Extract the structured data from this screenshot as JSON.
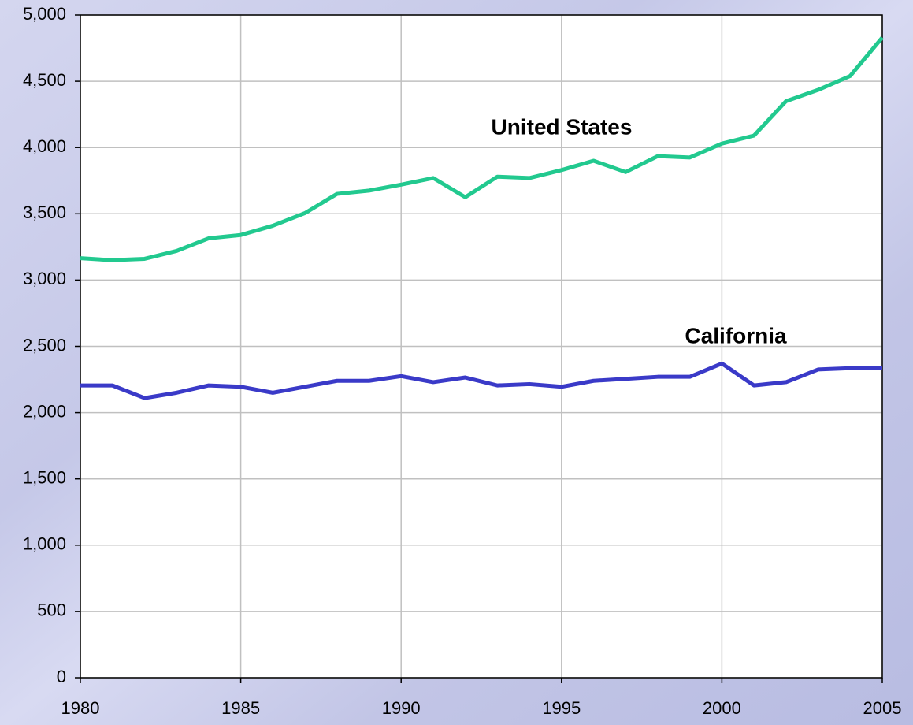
{
  "chart_data": {
    "type": "line",
    "x": [
      1980,
      1981,
      1982,
      1983,
      1984,
      1985,
      1986,
      1987,
      1988,
      1989,
      1990,
      1991,
      1992,
      1993,
      1994,
      1995,
      1996,
      1997,
      1998,
      1999,
      2000,
      2001,
      2002,
      2003,
      2004,
      2005
    ],
    "series": [
      {
        "name": "United States",
        "color": "#22c98f",
        "values": [
          3165,
          3150,
          3160,
          3220,
          3315,
          3340,
          3410,
          3505,
          3650,
          3675,
          3720,
          3770,
          3625,
          3780,
          3770,
          3830,
          3900,
          3815,
          3935,
          3925,
          4030,
          4090,
          4350,
          4435,
          4540,
          4830
        ]
      },
      {
        "name": "California",
        "color": "#3a3ac8",
        "values": [
          2205,
          2205,
          2110,
          2150,
          2205,
          2195,
          2150,
          2195,
          2240,
          2240,
          2275,
          2230,
          2265,
          2205,
          2215,
          2195,
          2240,
          2255,
          2270,
          2270,
          2370,
          2205,
          2230,
          2325,
          2335,
          2335
        ]
      }
    ],
    "xlim": [
      1980,
      2005
    ],
    "xticks": [
      1980,
      1985,
      1990,
      1995,
      2000,
      2005
    ],
    "ylim": [
      0,
      5000
    ],
    "yticks": [
      0,
      500,
      {
        "value": 1000,
        "label": "1,000"
      },
      {
        "value": 1500,
        "label": "1,500"
      },
      {
        "value": 2000,
        "label": "2,000"
      },
      {
        "value": 2500,
        "label": "2,500"
      },
      {
        "value": 3000,
        "label": "3,000"
      },
      {
        "value": 3500,
        "label": "3,500"
      },
      {
        "value": 4000,
        "label": "4,000"
      },
      {
        "value": 4500,
        "label": "4,500"
      },
      {
        "value": 5000,
        "label": "5,000"
      }
    ],
    "grid": true
  }
}
